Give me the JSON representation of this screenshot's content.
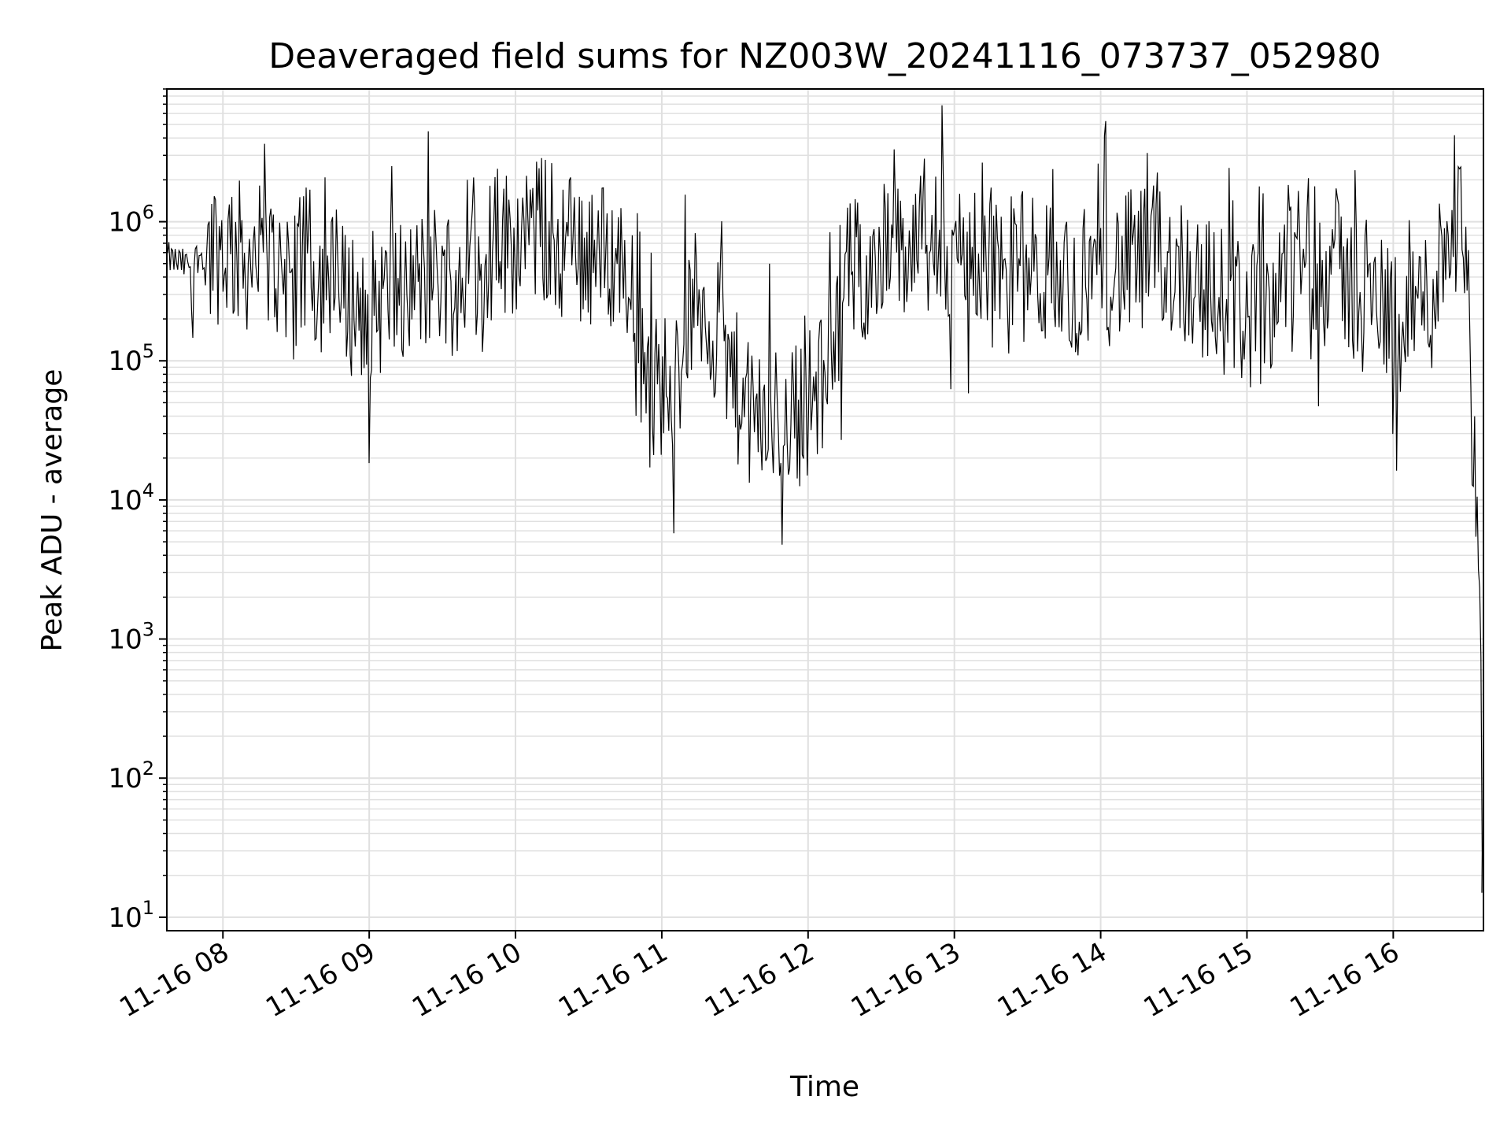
{
  "chart_data": {
    "type": "line",
    "title": "Deaveraged field sums for NZ003W_20241116_073737_052980",
    "xlabel": "Time",
    "ylabel": "Peak ADU - average",
    "yscale": "log",
    "ylim": [
      8,
      9000000
    ],
    "xlim": [
      "2024-11-16 07:37",
      "2024-11-16 16:37"
    ],
    "grid": true,
    "line_color": "#000000",
    "grid_color": "#e0e0e0",
    "x_ticks": [
      {
        "value": "2024-11-16 08:00",
        "label": "11-16 08"
      },
      {
        "value": "2024-11-16 09:00",
        "label": "11-16 09"
      },
      {
        "value": "2024-11-16 10:00",
        "label": "11-16 10"
      },
      {
        "value": "2024-11-16 11:00",
        "label": "11-16 11"
      },
      {
        "value": "2024-11-16 12:00",
        "label": "11-16 12"
      },
      {
        "value": "2024-11-16 13:00",
        "label": "11-16 13"
      },
      {
        "value": "2024-11-16 14:00",
        "label": "11-16 14"
      },
      {
        "value": "2024-11-16 15:00",
        "label": "11-16 15"
      },
      {
        "value": "2024-11-16 16:00",
        "label": "11-16 16"
      }
    ],
    "y_ticks": [
      {
        "value": 10,
        "exponent": "1"
      },
      {
        "value": 100,
        "exponent": "2"
      },
      {
        "value": 1000,
        "exponent": "3"
      },
      {
        "value": 10000,
        "exponent": "4"
      },
      {
        "value": 100000,
        "exponent": "5"
      },
      {
        "value": 1000000,
        "exponent": "6"
      }
    ],
    "series": [
      {
        "x": [
          "2024-11-16 07:37",
          "2024-11-16 07:45",
          "2024-11-16 07:52",
          "2024-11-16 08:00",
          "2024-11-16 08:10",
          "2024-11-16 08:20",
          "2024-11-16 08:30",
          "2024-11-16 08:40",
          "2024-11-16 08:50",
          "2024-11-16 09:00",
          "2024-11-16 09:10",
          "2024-11-16 09:20",
          "2024-11-16 09:30",
          "2024-11-16 09:40",
          "2024-11-16 09:50",
          "2024-11-16 10:00",
          "2024-11-16 10:10",
          "2024-11-16 10:20",
          "2024-11-16 10:30",
          "2024-11-16 10:40",
          "2024-11-16 10:50",
          "2024-11-16 10:55",
          "2024-11-16 11:05",
          "2024-11-16 11:15",
          "2024-11-16 11:25",
          "2024-11-16 11:35",
          "2024-11-16 11:45",
          "2024-11-16 11:55",
          "2024-11-16 12:05",
          "2024-11-16 12:15",
          "2024-11-16 12:25",
          "2024-11-16 12:35",
          "2024-11-16 12:45",
          "2024-11-16 12:55",
          "2024-11-16 13:05",
          "2024-11-16 13:15",
          "2024-11-16 13:25",
          "2024-11-16 13:35",
          "2024-11-16 13:45",
          "2024-11-16 13:55",
          "2024-11-16 14:05",
          "2024-11-16 14:15",
          "2024-11-16 14:25",
          "2024-11-16 14:35",
          "2024-11-16 14:45",
          "2024-11-16 14:55",
          "2024-11-16 15:05",
          "2024-11-16 15:15",
          "2024-11-16 15:25",
          "2024-11-16 15:35",
          "2024-11-16 15:45",
          "2024-11-16 15:55",
          "2024-11-16 16:05",
          "2024-11-16 16:15",
          "2024-11-16 16:20",
          "2024-11-16 16:25",
          "2024-11-16 16:30",
          "2024-11-16 16:33",
          "2024-11-16 16:35",
          "2024-11-16 16:36",
          "2024-11-16 16:37"
        ],
        "y": [
          550000,
          480000,
          600000,
          650000,
          550000,
          500000,
          450000,
          400000,
          280000,
          250000,
          300000,
          350000,
          450000,
          400000,
          650000,
          750000,
          900000,
          700000,
          600000,
          550000,
          400000,
          60000,
          80000,
          300000,
          120000,
          40000,
          35000,
          45000,
          60000,
          400000,
          500000,
          550000,
          650000,
          600000,
          600000,
          550000,
          500000,
          450000,
          350000,
          400000,
          450000,
          500000,
          550000,
          450000,
          300000,
          250000,
          200000,
          500000,
          600000,
          550000,
          300000,
          250000,
          300000,
          250000,
          600000,
          1200000,
          600000,
          20000,
          6000,
          300,
          15
        ]
      }
    ]
  }
}
